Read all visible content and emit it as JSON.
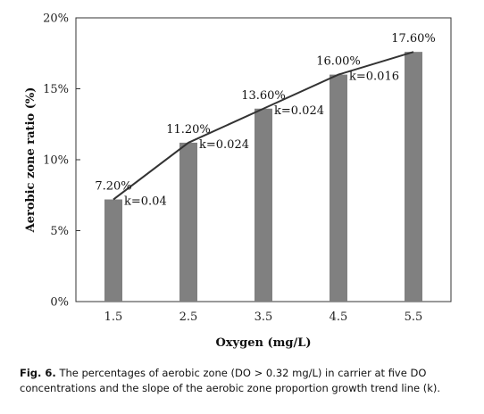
{
  "chart_data": {
    "type": "bar",
    "xlabel": "Oxygen (mg/L)",
    "ylabel": "Aerobic  zone ratio (%)",
    "categories": [
      "1.5",
      "2.5",
      "3.5",
      "4.5",
      "5.5"
    ],
    "values": [
      7.2,
      11.2,
      13.6,
      16.0,
      17.6
    ],
    "value_labels": [
      "7.20%",
      "11.20%",
      "13.60%",
      "16.00%",
      "17.60%"
    ],
    "ylim": [
      0,
      20
    ],
    "yticks": [
      0,
      5,
      10,
      15,
      20
    ],
    "ytick_labels": [
      "0%",
      "5%",
      "10%",
      "15%",
      "20%"
    ],
    "trend_line": {
      "connects_bar_tops": true,
      "slope_labels": [
        "k=0.04",
        "k=0.024",
        "k=0.024",
        "k=0.016"
      ]
    },
    "bar_color": "#808080",
    "grid": false,
    "legend": "none"
  },
  "caption": {
    "label": "Fig. 6.",
    "text": "The percentages of aerobic zone (DO > 0.32 mg/L) in carrier at five DO concentrations and the slope of the aerobic zone proportion growth trend line (k)."
  }
}
